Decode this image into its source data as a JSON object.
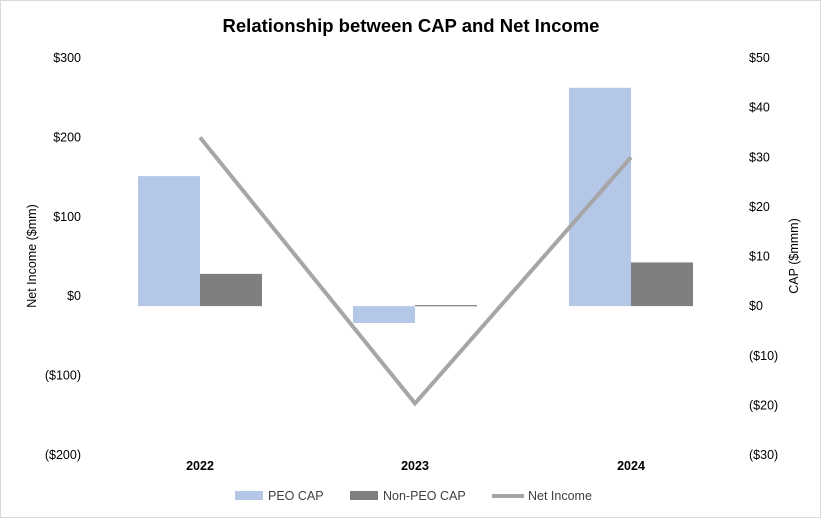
{
  "chart_data": {
    "type": "bar",
    "title": "Relationship between CAP and Net Income",
    "categories": [
      "2022",
      "2023",
      "2024"
    ],
    "y_left": {
      "label": "Net Income ($mm)",
      "range": [
        -200,
        300
      ],
      "ticks": [
        300,
        200,
        100,
        0,
        -100,
        -200
      ],
      "tick_labels": [
        "$300",
        "$200",
        "$100",
        "$0",
        "($100)",
        "($200)"
      ]
    },
    "y_right": {
      "label": "CAP ($mmm)",
      "range": [
        -30,
        50
      ],
      "ticks": [
        50,
        40,
        30,
        20,
        10,
        0,
        -10,
        -20,
        -30
      ],
      "tick_labels": [
        "$50",
        "$40",
        "$30",
        "$20",
        "$10",
        "$0",
        "($10)",
        "($20)",
        "($30)"
      ]
    },
    "series": [
      {
        "name": "PEO CAP",
        "type": "bar",
        "axis": "right",
        "color": "#b4c7e7",
        "values": [
          26.2,
          -3.4,
          44.0
        ]
      },
      {
        "name": "Non-PEO CAP",
        "type": "bar",
        "axis": "right",
        "color": "#7f7f7f",
        "values": [
          6.5,
          0.2,
          8.8
        ]
      },
      {
        "name": "Net Income",
        "type": "line",
        "axis": "left",
        "color": "#a6a6a6",
        "values": [
          200,
          -135,
          175
        ]
      }
    ],
    "grid": false,
    "legend_position": "bottom"
  }
}
